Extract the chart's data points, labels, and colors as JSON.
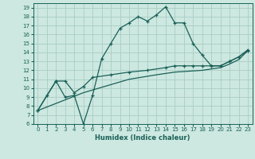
{
  "xlabel": "Humidex (Indice chaleur)",
  "bg_color": "#cce8e0",
  "grid_color": "#aaccc4",
  "line_color": "#1a6058",
  "xlim": [
    -0.5,
    23.5
  ],
  "ylim": [
    6,
    19.5
  ],
  "xticks": [
    0,
    1,
    2,
    3,
    4,
    5,
    6,
    7,
    8,
    9,
    10,
    11,
    12,
    13,
    14,
    15,
    16,
    17,
    18,
    19,
    20,
    21,
    22,
    23
  ],
  "yticks": [
    6,
    7,
    8,
    9,
    10,
    11,
    12,
    13,
    14,
    15,
    16,
    17,
    18,
    19
  ],
  "line1_x": [
    0,
    1,
    2,
    3,
    4,
    5,
    6,
    7,
    8,
    9,
    10,
    11,
    12,
    13,
    14,
    15,
    16,
    17,
    18,
    19,
    20,
    21,
    22,
    23
  ],
  "line1_y": [
    7.5,
    9.2,
    10.8,
    9.0,
    9.2,
    6.0,
    9.2,
    13.3,
    15.0,
    16.7,
    17.3,
    18.0,
    17.5,
    18.2,
    19.1,
    17.3,
    17.3,
    15.0,
    13.7,
    12.5,
    12.5,
    13.0,
    13.5,
    14.2
  ],
  "line2_x": [
    0,
    2,
    3,
    4,
    5,
    6,
    8,
    10,
    12,
    14,
    15,
    16,
    17,
    18,
    19,
    20,
    21,
    22,
    23
  ],
  "line2_y": [
    7.5,
    10.8,
    10.8,
    9.5,
    10.2,
    11.2,
    11.5,
    11.8,
    12.0,
    12.3,
    12.5,
    12.5,
    12.5,
    12.5,
    12.5,
    12.5,
    13.0,
    13.5,
    14.3
  ],
  "line3_x": [
    0,
    5,
    10,
    13,
    15,
    18,
    20,
    21,
    22,
    23
  ],
  "line3_y": [
    7.5,
    9.5,
    11.0,
    11.5,
    11.8,
    12.0,
    12.3,
    12.7,
    13.2,
    14.2
  ]
}
